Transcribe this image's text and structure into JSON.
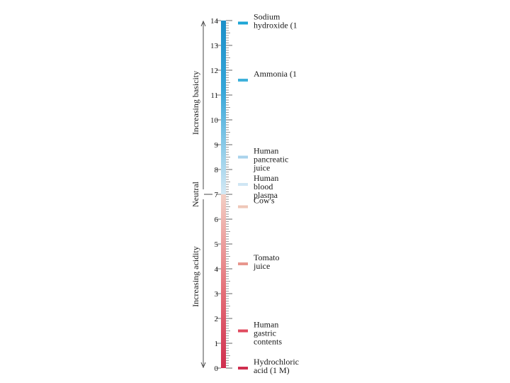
{
  "scale": {
    "min": 0,
    "max": 14,
    "neutral": 7,
    "tick_labels": [
      "0",
      "1",
      "2",
      "3",
      "4",
      "5",
      "6",
      "7",
      "8",
      "9",
      "10",
      "11",
      "12",
      "13",
      "14"
    ]
  },
  "axis_labels": {
    "basic": "Increasing basicity",
    "neutral": "Neutral",
    "acidic": "Increasing acidity"
  },
  "colors": {
    "base_strong": "#1b8fc8",
    "base_light": "#d4e9f5",
    "acid_light": "#f3cfc4",
    "acid_strong": "#cf2f4f"
  },
  "substances": [
    {
      "ph": 13.9,
      "label_lines": [
        "Sodium",
        "hydroxide (1"
      ],
      "color": "#1ea6d6"
    },
    {
      "ph": 11.6,
      "label_lines": [
        "Ammonia (1"
      ],
      "color": "#3fb1db"
    },
    {
      "ph": 8.5,
      "label_lines": [
        "Human",
        "pancreatic",
        "juice"
      ],
      "color": "#a9d3ec"
    },
    {
      "ph": 7.4,
      "label_lines": [
        "Human",
        "blood",
        "plasma"
      ],
      "color": "#cfe6f4"
    },
    {
      "ph": 6.5,
      "label_lines": [
        "Cow's"
      ],
      "color": "#efc7b8"
    },
    {
      "ph": 4.2,
      "label_lines": [
        "Tomato",
        "juice"
      ],
      "color": "#e8968e"
    },
    {
      "ph": 1.5,
      "label_lines": [
        "Human",
        "gastric",
        "contents"
      ],
      "color": "#e04a5f"
    },
    {
      "ph": 0.0,
      "label_lines": [
        "Hydrochloric",
        "acid (1 M)"
      ],
      "color": "#cf2f4f"
    }
  ]
}
